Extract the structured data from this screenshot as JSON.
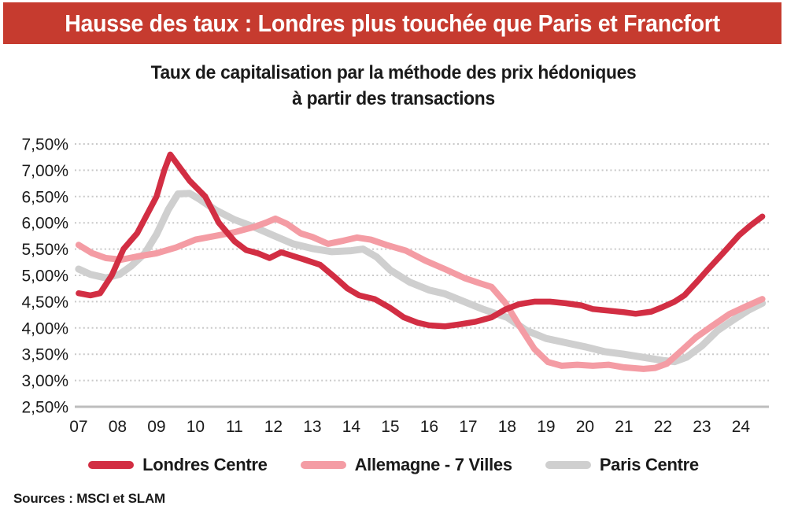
{
  "banner": {
    "title": "Hausse des taux : Londres plus touchée que Paris et Francfort",
    "bg_color": "#C63B2F",
    "text_color": "#FFFFFF"
  },
  "subtitle": {
    "line1": "Taux de capitalisation par la méthode des prix hédoniques",
    "line2": "à partir des transactions"
  },
  "chart_data": {
    "type": "line",
    "title": "Taux de capitalisation par la méthode des prix hédoniques à partir des transactions",
    "xlabel": "",
    "ylabel": "",
    "grid": "horizontal dotted",
    "legend_position": "bottom",
    "x_axis": {
      "range": [
        6.9,
        24.72
      ],
      "ticks": [
        7,
        8,
        9,
        10,
        11,
        12,
        13,
        14,
        15,
        16,
        17,
        18,
        19,
        20,
        21,
        22,
        23,
        24
      ],
      "tick_labels": [
        "07",
        "08",
        "09",
        "10",
        "11",
        "12",
        "13",
        "14",
        "15",
        "16",
        "17",
        "18",
        "19",
        "20",
        "21",
        "22",
        "23",
        "24"
      ]
    },
    "y_axis": {
      "range": [
        2.5,
        7.5
      ],
      "unit": "percent",
      "ticks": [
        7.5,
        7.0,
        6.5,
        6.0,
        5.5,
        5.0,
        4.5,
        4.0,
        3.5,
        3.0,
        2.5
      ],
      "tick_labels": [
        "7,50%",
        "7,00%",
        "6,50%",
        "6,00%",
        "5,50%",
        "5,00%",
        "4,50%",
        "4,00%",
        "3,50%",
        "3,00%",
        "2,50%"
      ]
    },
    "series": [
      {
        "id": "londres-centre",
        "name": "Londres Centre",
        "color": "#D22E43",
        "points": [
          [
            7.0,
            4.66
          ],
          [
            7.3,
            4.62
          ],
          [
            7.55,
            4.66
          ],
          [
            7.85,
            5.0
          ],
          [
            8.15,
            5.5
          ],
          [
            8.5,
            5.8
          ],
          [
            9.0,
            6.5
          ],
          [
            9.2,
            7.0
          ],
          [
            9.35,
            7.3
          ],
          [
            9.6,
            7.05
          ],
          [
            9.85,
            6.8
          ],
          [
            10.25,
            6.5
          ],
          [
            10.6,
            6.0
          ],
          [
            11.0,
            5.65
          ],
          [
            11.3,
            5.48
          ],
          [
            11.6,
            5.42
          ],
          [
            11.9,
            5.33
          ],
          [
            12.2,
            5.44
          ],
          [
            12.5,
            5.37
          ],
          [
            12.8,
            5.3
          ],
          [
            13.2,
            5.2
          ],
          [
            13.6,
            4.95
          ],
          [
            13.9,
            4.75
          ],
          [
            14.2,
            4.62
          ],
          [
            14.6,
            4.55
          ],
          [
            15.0,
            4.38
          ],
          [
            15.35,
            4.2
          ],
          [
            15.7,
            4.1
          ],
          [
            16.0,
            4.05
          ],
          [
            16.4,
            4.03
          ],
          [
            16.8,
            4.07
          ],
          [
            17.2,
            4.12
          ],
          [
            17.6,
            4.2
          ],
          [
            17.95,
            4.35
          ],
          [
            18.3,
            4.45
          ],
          [
            18.7,
            4.5
          ],
          [
            19.1,
            4.5
          ],
          [
            19.5,
            4.47
          ],
          [
            19.9,
            4.43
          ],
          [
            20.2,
            4.36
          ],
          [
            20.6,
            4.33
          ],
          [
            21.0,
            4.3
          ],
          [
            21.3,
            4.27
          ],
          [
            21.7,
            4.31
          ],
          [
            22.0,
            4.4
          ],
          [
            22.3,
            4.5
          ],
          [
            22.55,
            4.62
          ],
          [
            22.9,
            4.9
          ],
          [
            23.15,
            5.11
          ],
          [
            23.55,
            5.43
          ],
          [
            23.95,
            5.76
          ],
          [
            24.25,
            5.95
          ],
          [
            24.55,
            6.12
          ]
        ]
      },
      {
        "id": "allemagne-7-villes",
        "name": "Allemagne - 7 Villes",
        "color": "#F49CA4",
        "points": [
          [
            7.0,
            5.58
          ],
          [
            7.35,
            5.42
          ],
          [
            7.7,
            5.33
          ],
          [
            8.1,
            5.3
          ],
          [
            8.5,
            5.36
          ],
          [
            9.0,
            5.42
          ],
          [
            9.5,
            5.53
          ],
          [
            10.0,
            5.68
          ],
          [
            10.5,
            5.75
          ],
          [
            11.0,
            5.82
          ],
          [
            11.5,
            5.92
          ],
          [
            11.8,
            6.0
          ],
          [
            12.05,
            6.08
          ],
          [
            12.35,
            5.98
          ],
          [
            12.7,
            5.8
          ],
          [
            13.0,
            5.73
          ],
          [
            13.4,
            5.6
          ],
          [
            13.8,
            5.66
          ],
          [
            14.15,
            5.72
          ],
          [
            14.5,
            5.68
          ],
          [
            14.9,
            5.58
          ],
          [
            15.4,
            5.47
          ],
          [
            15.9,
            5.28
          ],
          [
            16.4,
            5.12
          ],
          [
            16.9,
            4.95
          ],
          [
            17.3,
            4.85
          ],
          [
            17.6,
            4.78
          ],
          [
            17.95,
            4.48
          ],
          [
            18.35,
            4.0
          ],
          [
            18.7,
            3.6
          ],
          [
            19.05,
            3.35
          ],
          [
            19.4,
            3.28
          ],
          [
            19.8,
            3.3
          ],
          [
            20.2,
            3.28
          ],
          [
            20.6,
            3.3
          ],
          [
            21.0,
            3.25
          ],
          [
            21.5,
            3.22
          ],
          [
            21.8,
            3.24
          ],
          [
            22.1,
            3.32
          ],
          [
            22.45,
            3.55
          ],
          [
            22.85,
            3.82
          ],
          [
            23.25,
            4.03
          ],
          [
            23.7,
            4.26
          ],
          [
            24.1,
            4.4
          ],
          [
            24.55,
            4.55
          ]
        ]
      },
      {
        "id": "paris-centre",
        "name": "Paris Centre",
        "color": "#CFCFCF",
        "points": [
          [
            7.0,
            5.12
          ],
          [
            7.3,
            5.02
          ],
          [
            7.7,
            4.95
          ],
          [
            8.05,
            5.02
          ],
          [
            8.35,
            5.18
          ],
          [
            8.7,
            5.42
          ],
          [
            9.0,
            5.78
          ],
          [
            9.3,
            6.25
          ],
          [
            9.55,
            6.55
          ],
          [
            9.85,
            6.56
          ],
          [
            10.1,
            6.45
          ],
          [
            10.5,
            6.25
          ],
          [
            11.0,
            6.06
          ],
          [
            11.5,
            5.92
          ],
          [
            12.0,
            5.76
          ],
          [
            12.5,
            5.6
          ],
          [
            13.0,
            5.51
          ],
          [
            13.5,
            5.45
          ],
          [
            14.0,
            5.47
          ],
          [
            14.3,
            5.5
          ],
          [
            14.65,
            5.35
          ],
          [
            15.0,
            5.1
          ],
          [
            15.5,
            4.87
          ],
          [
            16.0,
            4.72
          ],
          [
            16.4,
            4.65
          ],
          [
            16.9,
            4.5
          ],
          [
            17.4,
            4.35
          ],
          [
            18.0,
            4.2
          ],
          [
            18.5,
            3.95
          ],
          [
            19.0,
            3.8
          ],
          [
            19.5,
            3.72
          ],
          [
            20.0,
            3.64
          ],
          [
            20.5,
            3.55
          ],
          [
            21.0,
            3.5
          ],
          [
            21.5,
            3.44
          ],
          [
            22.0,
            3.38
          ],
          [
            22.3,
            3.36
          ],
          [
            22.6,
            3.44
          ],
          [
            23.0,
            3.66
          ],
          [
            23.4,
            3.95
          ],
          [
            23.8,
            4.15
          ],
          [
            24.2,
            4.34
          ],
          [
            24.55,
            4.47
          ]
        ]
      }
    ],
    "style": {
      "gridline_color": "#C9C9C9",
      "axis_line_color": "#BDBDBD"
    }
  },
  "footer": {
    "sources": "Sources : MSCI et SLAM"
  }
}
